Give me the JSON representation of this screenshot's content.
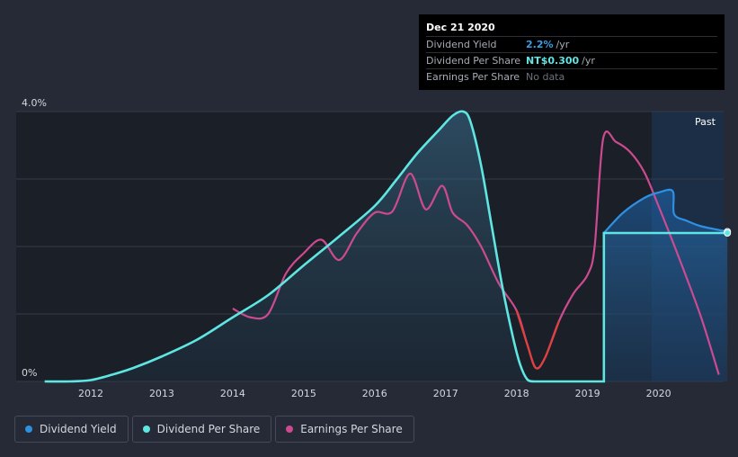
{
  "tooltip": {
    "date": "Dec 21 2020",
    "rows": [
      {
        "label": "Dividend Yield",
        "value": "2.2%",
        "unit": "/yr",
        "color": "#3a9ee9"
      },
      {
        "label": "Dividend Per Share",
        "value": "NT$0.300",
        "unit": "/yr",
        "color": "#5fe5e2"
      },
      {
        "label": "Earnings Per Share",
        "value": "No data"
      }
    ]
  },
  "past_label": "Past",
  "legend": [
    {
      "label": "Dividend Yield",
      "color": "#2f8fe0"
    },
    {
      "label": "Dividend Per Share",
      "color": "#5fe5e2"
    },
    {
      "label": "Earnings Per Share",
      "color": "#cc4a90"
    }
  ],
  "chart_data": {
    "type": "line",
    "title": "",
    "xlabel": "",
    "ylabel": "",
    "ylim": [
      0,
      4
    ],
    "y_ticks": [
      "0%",
      "4.0%"
    ],
    "xlim": [
      2011,
      2020.97
    ],
    "x_ticks": [
      "2012",
      "2013",
      "2014",
      "2015",
      "2016",
      "2017",
      "2018",
      "2019",
      "2020"
    ],
    "grid": true,
    "series": [
      {
        "name": "Dividend Per Share",
        "color": "#5fe5e2",
        "points": [
          [
            2011.35,
            0
          ],
          [
            2011.7,
            0
          ],
          [
            2012.0,
            0.02
          ],
          [
            2012.3,
            0.1
          ],
          [
            2012.6,
            0.2
          ],
          [
            2013.0,
            0.37
          ],
          [
            2013.5,
            0.62
          ],
          [
            2014.0,
            0.95
          ],
          [
            2014.5,
            1.28
          ],
          [
            2015.0,
            1.72
          ],
          [
            2015.5,
            2.15
          ],
          [
            2016.0,
            2.6
          ],
          [
            2016.3,
            2.98
          ],
          [
            2016.6,
            3.38
          ],
          [
            2016.9,
            3.72
          ],
          [
            2017.1,
            3.94
          ],
          [
            2017.25,
            4.0
          ],
          [
            2017.35,
            3.85
          ],
          [
            2017.5,
            3.2
          ],
          [
            2017.65,
            2.3
          ],
          [
            2017.8,
            1.4
          ],
          [
            2017.95,
            0.65
          ],
          [
            2018.05,
            0.25
          ],
          [
            2018.15,
            0.03
          ],
          [
            2018.25,
            0
          ],
          [
            2019.23,
            0
          ],
          [
            2019.23,
            2.2
          ],
          [
            2020.97,
            2.2
          ]
        ]
      },
      {
        "name": "Dividend Yield",
        "color": "#2f8fe0",
        "points": [
          [
            2019.23,
            2.2
          ],
          [
            2019.5,
            2.5
          ],
          [
            2019.8,
            2.72
          ],
          [
            2020.0,
            2.8
          ],
          [
            2020.2,
            2.82
          ],
          [
            2020.22,
            2.48
          ],
          [
            2020.4,
            2.38
          ],
          [
            2020.6,
            2.3
          ],
          [
            2020.97,
            2.22
          ]
        ]
      },
      {
        "name": "Earnings Per Share",
        "color": "#cc4a90",
        "points": [
          [
            2014.0,
            1.08
          ],
          [
            2014.25,
            0.95
          ],
          [
            2014.5,
            1.0
          ],
          [
            2014.75,
            1.6
          ],
          [
            2015.0,
            1.9
          ],
          [
            2015.25,
            2.1
          ],
          [
            2015.5,
            1.8
          ],
          [
            2015.75,
            2.2
          ],
          [
            2016.0,
            2.5
          ],
          [
            2016.25,
            2.52
          ],
          [
            2016.5,
            3.08
          ],
          [
            2016.72,
            2.55
          ],
          [
            2016.95,
            2.9
          ],
          [
            2017.1,
            2.5
          ],
          [
            2017.3,
            2.32
          ],
          [
            2017.5,
            2.0
          ],
          [
            2017.75,
            1.45
          ],
          [
            2018.0,
            1.05
          ],
          [
            2018.15,
            0.55
          ],
          [
            2018.27,
            0.2
          ],
          [
            2018.4,
            0.35
          ],
          [
            2018.6,
            0.9
          ],
          [
            2018.8,
            1.3
          ],
          [
            2019.0,
            1.58
          ],
          [
            2019.1,
            2.0
          ],
          [
            2019.22,
            3.6
          ],
          [
            2019.4,
            3.55
          ],
          [
            2019.6,
            3.4
          ],
          [
            2019.8,
            3.1
          ],
          [
            2020.0,
            2.6
          ],
          [
            2020.3,
            1.8
          ],
          [
            2020.6,
            0.95
          ],
          [
            2020.85,
            0.1
          ]
        ]
      }
    ]
  }
}
